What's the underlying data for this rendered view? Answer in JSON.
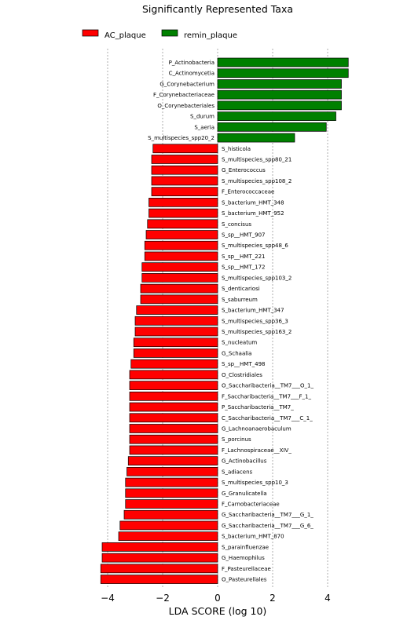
{
  "chart_data": {
    "type": "bar",
    "orientation": "horizontal",
    "title": "Significantly Represented Taxa",
    "xlabel": "LDA SCORE (log 10)",
    "xlim": [
      -4.2,
      5.0
    ],
    "xticks": [
      -4,
      -2,
      0,
      2,
      4
    ],
    "xtick_labels": [
      "−4",
      "−2",
      "0",
      "2",
      "4"
    ],
    "grid": true,
    "legend": {
      "placement": "top-left",
      "entries": [
        {
          "name": "AC_plaque",
          "color": "#ff0000"
        },
        {
          "name": "remin_plaque",
          "color": "#008000"
        }
      ]
    },
    "series": [
      {
        "name": "remin_plaque",
        "color": "#008000"
      },
      {
        "name": "AC_plaque",
        "color": "#ff0000"
      }
    ],
    "bars": [
      {
        "label": "P_Actinobacteria",
        "value": 4.75,
        "group": "remin_plaque"
      },
      {
        "label": "C_Actinomycetia",
        "value": 4.75,
        "group": "remin_plaque"
      },
      {
        "label": "G_Corynebacterium",
        "value": 4.5,
        "group": "remin_plaque"
      },
      {
        "label": "F_Corynebacteriaceae",
        "value": 4.5,
        "group": "remin_plaque"
      },
      {
        "label": "O_Corynebacteriales",
        "value": 4.5,
        "group": "remin_plaque"
      },
      {
        "label": "S_durum",
        "value": 4.3,
        "group": "remin_plaque"
      },
      {
        "label": "S_aeria",
        "value": 3.95,
        "group": "remin_plaque"
      },
      {
        "label": "S_multispecies_spp20_2",
        "value": 2.8,
        "group": "remin_plaque"
      },
      {
        "label": "S_histicola",
        "value": -2.35,
        "group": "AC_plaque"
      },
      {
        "label": "S_multispecies_spp80_21",
        "value": -2.4,
        "group": "AC_plaque"
      },
      {
        "label": "G_Enterococcus",
        "value": -2.4,
        "group": "AC_plaque"
      },
      {
        "label": "S_multispecies_spp108_2",
        "value": -2.4,
        "group": "AC_plaque"
      },
      {
        "label": "F_Enterococcaceae",
        "value": -2.4,
        "group": "AC_plaque"
      },
      {
        "label": "S_bacterium_HMT_348",
        "value": -2.5,
        "group": "AC_plaque"
      },
      {
        "label": "S_bacterium_HMT_952",
        "value": -2.5,
        "group": "AC_plaque"
      },
      {
        "label": "S_concisus",
        "value": -2.55,
        "group": "AC_plaque"
      },
      {
        "label": "S_sp__HMT_907",
        "value": -2.6,
        "group": "AC_plaque"
      },
      {
        "label": "S_multispecies_spp48_6",
        "value": -2.65,
        "group": "AC_plaque"
      },
      {
        "label": "S_sp__HMT_221",
        "value": -2.65,
        "group": "AC_plaque"
      },
      {
        "label": "S_sp__HMT_172",
        "value": -2.75,
        "group": "AC_plaque"
      },
      {
        "label": "S_multispecies_spp103_2",
        "value": -2.75,
        "group": "AC_plaque"
      },
      {
        "label": "S_denticariosi",
        "value": -2.8,
        "group": "AC_plaque"
      },
      {
        "label": "S_saburreum",
        "value": -2.8,
        "group": "AC_plaque"
      },
      {
        "label": "S_bacterium_HMT_347",
        "value": -2.95,
        "group": "AC_plaque"
      },
      {
        "label": "S_multispecies_spp36_3",
        "value": -3.0,
        "group": "AC_plaque"
      },
      {
        "label": "S_multispecies_spp163_2",
        "value": -3.0,
        "group": "AC_plaque"
      },
      {
        "label": "S_nucleatum",
        "value": -3.05,
        "group": "AC_plaque"
      },
      {
        "label": "G_Schaalia",
        "value": -3.05,
        "group": "AC_plaque"
      },
      {
        "label": "S_sp__HMT_498",
        "value": -3.15,
        "group": "AC_plaque"
      },
      {
        "label": "O_Clostridiales",
        "value": -3.2,
        "group": "AC_plaque"
      },
      {
        "label": "O_Saccharibacteria__TM7___O_1_",
        "value": -3.2,
        "group": "AC_plaque"
      },
      {
        "label": "F_Saccharibacteria__TM7___F_1_",
        "value": -3.2,
        "group": "AC_plaque"
      },
      {
        "label": "P_Saccharibacteria__TM7_",
        "value": -3.2,
        "group": "AC_plaque"
      },
      {
        "label": "C_Saccharibacteria__TM7___C_1_",
        "value": -3.2,
        "group": "AC_plaque"
      },
      {
        "label": "G_Lachnoanaerobaculum",
        "value": -3.2,
        "group": "AC_plaque"
      },
      {
        "label": "S_porcinus",
        "value": -3.2,
        "group": "AC_plaque"
      },
      {
        "label": "F_Lachnospiraceae__XIV_",
        "value": -3.2,
        "group": "AC_plaque"
      },
      {
        "label": "G_Actinobacillus",
        "value": -3.25,
        "group": "AC_plaque"
      },
      {
        "label": "S_adiacens",
        "value": -3.3,
        "group": "AC_plaque"
      },
      {
        "label": "S_multispecies_spp10_3",
        "value": -3.35,
        "group": "AC_plaque"
      },
      {
        "label": "G_Granulicatella",
        "value": -3.35,
        "group": "AC_plaque"
      },
      {
        "label": "F_Carnobacteriaceae",
        "value": -3.35,
        "group": "AC_plaque"
      },
      {
        "label": "G_Saccharibacteria__TM7___G_1_",
        "value": -3.4,
        "group": "AC_plaque"
      },
      {
        "label": "G_Saccharibacteria__TM7___G_6_",
        "value": -3.55,
        "group": "AC_plaque"
      },
      {
        "label": "S_bacterium_HMT_870",
        "value": -3.6,
        "group": "AC_plaque"
      },
      {
        "label": "S_parainfluenzae",
        "value": -4.2,
        "group": "AC_plaque"
      },
      {
        "label": "G_Haemophilus",
        "value": -4.2,
        "group": "AC_plaque"
      },
      {
        "label": "F_Pasteurellaceae",
        "value": -4.25,
        "group": "AC_plaque"
      },
      {
        "label": "O_Pasteurellales",
        "value": -4.25,
        "group": "AC_plaque"
      }
    ]
  }
}
